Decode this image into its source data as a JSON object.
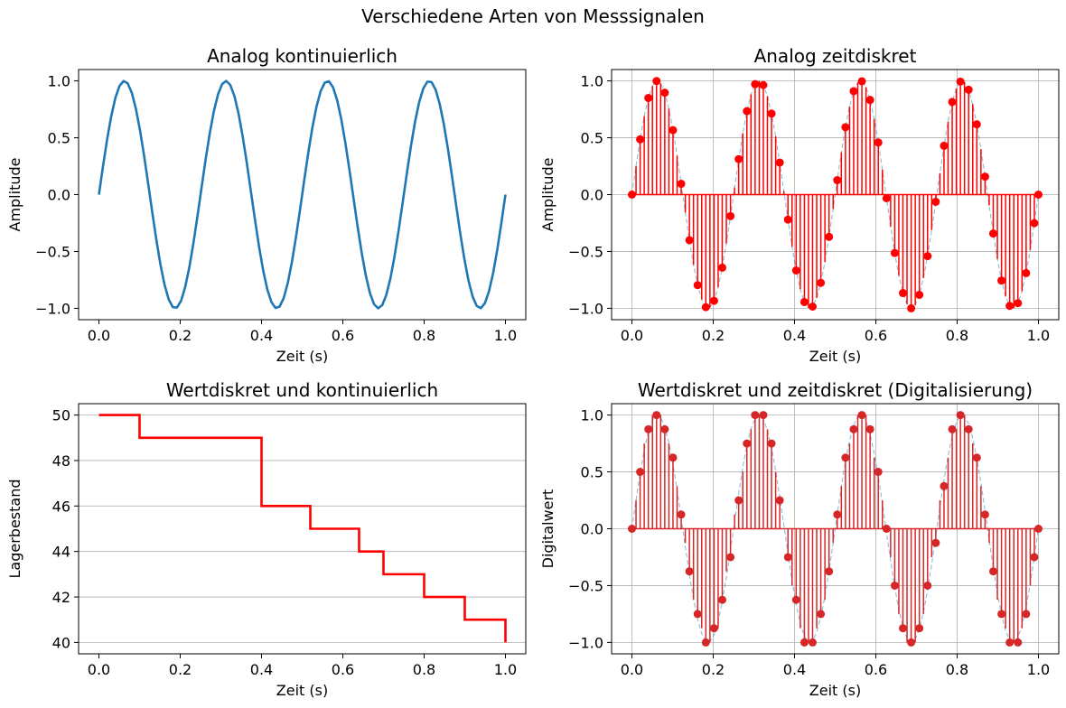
{
  "figure": {
    "suptitle": "Verschiedene Arten von Messsignalen"
  },
  "chart_data": [
    {
      "type": "line",
      "title": "Analog kontinuierlich",
      "xlabel": "Zeit (s)",
      "ylabel": "Amplitude",
      "xlim": [
        -0.05,
        1.05
      ],
      "ylim": [
        -1.1,
        1.1
      ],
      "xticks": [
        "0.0",
        "0.2",
        "0.4",
        "0.6",
        "0.8",
        "1.0"
      ],
      "yticks": [
        "−1.0",
        "−0.5",
        "0.0",
        "0.5",
        "1.0"
      ],
      "grid": false,
      "series": [
        {
          "kind": "line",
          "color": "#1f77b4",
          "function": "sin(2*pi*4*t)",
          "x_range": [
            0,
            1
          ],
          "samples": 100
        }
      ]
    },
    {
      "type": "stem",
      "title": "Analog zeitdiskret",
      "xlabel": "Zeit (s)",
      "ylabel": "Amplitude",
      "xlim": [
        -0.05,
        1.05
      ],
      "ylim": [
        -1.1,
        1.1
      ],
      "xticks": [
        "0.0",
        "0.2",
        "0.4",
        "0.6",
        "0.8",
        "1.0"
      ],
      "yticks": [
        "−1.0",
        "−0.5",
        "0.0",
        "0.5",
        "1.0"
      ],
      "grid": true,
      "series": [
        {
          "kind": "dashed-line",
          "color": "#1f77b4",
          "function": "sin(2*pi*4*t)",
          "x_range": [
            0,
            1
          ],
          "samples": 100
        },
        {
          "kind": "stem",
          "color": "#ff0000",
          "function": "sin(2*pi*4*t)",
          "x_range": [
            0,
            1
          ],
          "samples": 100,
          "marker_every": 2
        }
      ]
    },
    {
      "type": "step",
      "title": "Wertdiskret und kontinuierlich",
      "xlabel": "Zeit (s)",
      "ylabel": "Lagerbestand",
      "xlim": [
        -0.05,
        1.05
      ],
      "ylim": [
        39.5,
        50.5
      ],
      "xticks": [
        "0.0",
        "0.2",
        "0.4",
        "0.6",
        "0.8",
        "1.0"
      ],
      "yticks": [
        "40",
        "42",
        "44",
        "46",
        "48",
        "50"
      ],
      "grid": "y",
      "series": [
        {
          "kind": "step",
          "color": "#ff0000",
          "x": [
            0.0,
            0.1,
            0.4,
            0.52,
            0.64,
            0.7,
            0.8,
            0.9,
            1.0
          ],
          "y": [
            50,
            49,
            46,
            45,
            44,
            43,
            42,
            41,
            40
          ]
        }
      ]
    },
    {
      "type": "stem",
      "title": "Wertdiskret und zeitdiskret (Digitalisierung)",
      "xlabel": "Zeit (s)",
      "ylabel": "Digitalwert",
      "xlim": [
        -0.05,
        1.05
      ],
      "ylim": [
        -1.1,
        1.1
      ],
      "xticks": [
        "0.0",
        "0.2",
        "0.4",
        "0.6",
        "0.8",
        "1.0"
      ],
      "yticks": [
        "−1.0",
        "−0.5",
        "0.0",
        "0.5",
        "1.0"
      ],
      "grid": true,
      "series": [
        {
          "kind": "dashed-line",
          "color": "#1f77b4",
          "function": "sin(2*pi*4*t)",
          "x_range": [
            0,
            1
          ],
          "samples": 100
        },
        {
          "kind": "stem",
          "color": "#d62728",
          "function": "round(8*sin(2*pi*4*t))/8",
          "x_range": [
            0,
            1
          ],
          "samples": 100,
          "marker_every": 2
        }
      ]
    }
  ]
}
